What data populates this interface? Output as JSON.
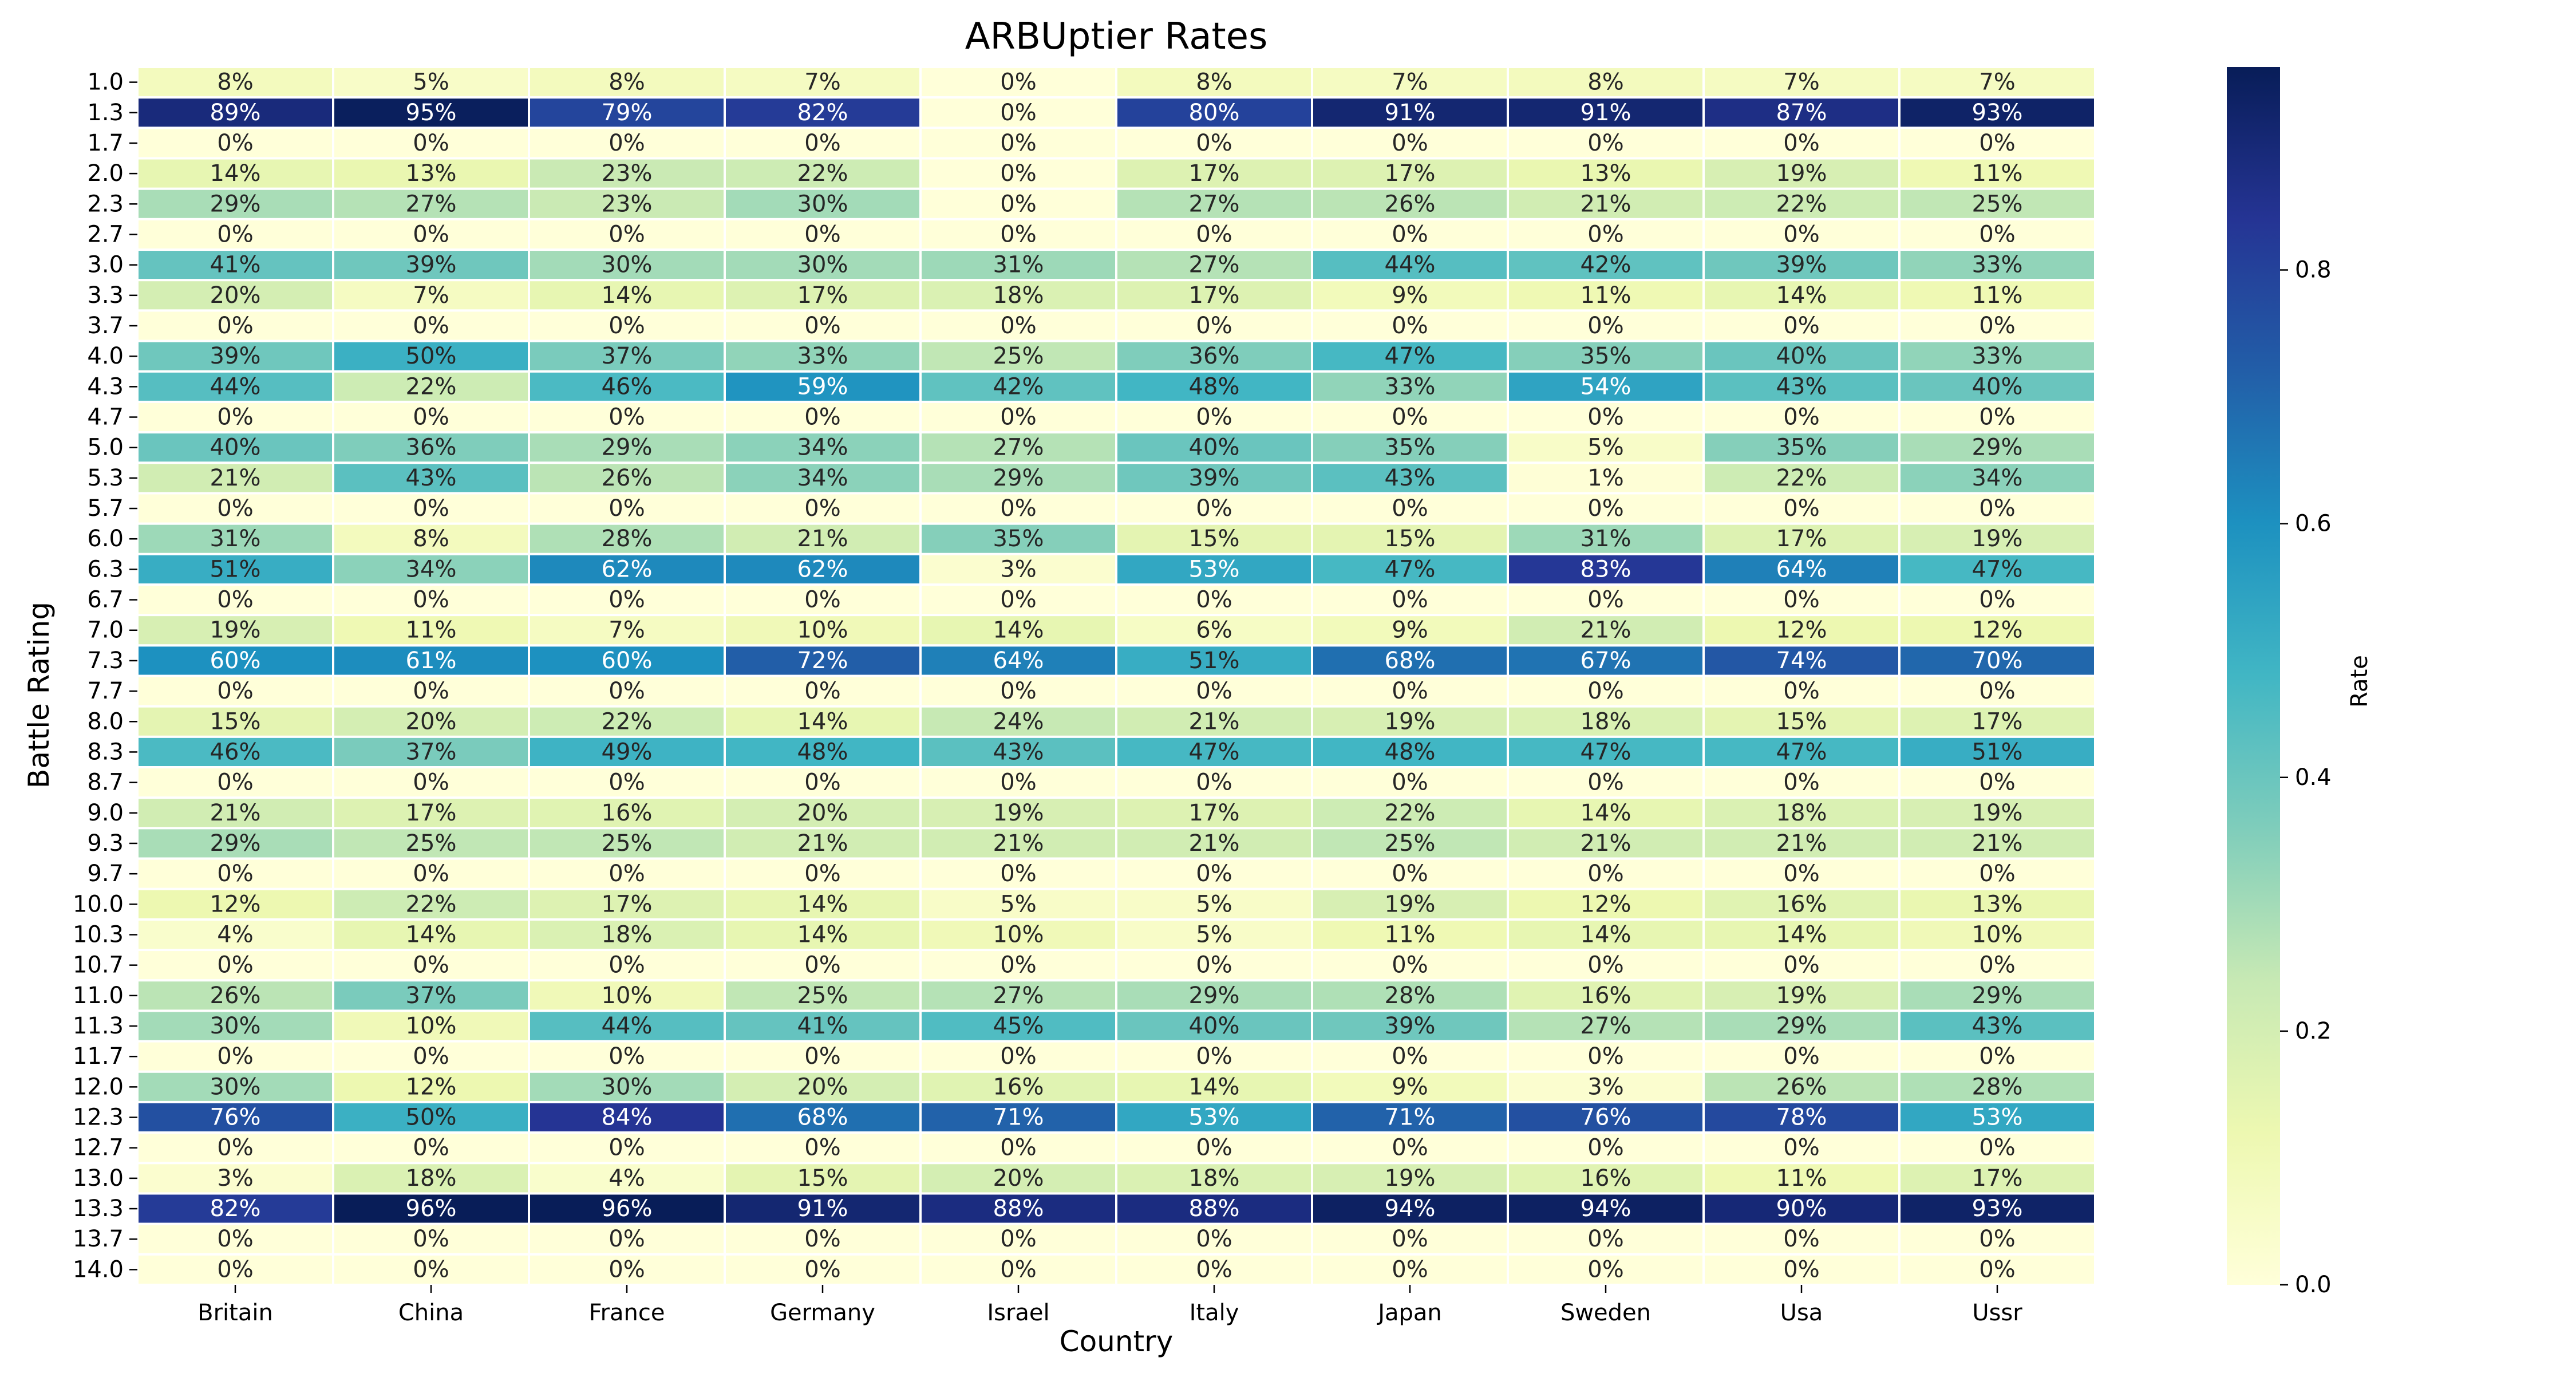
{
  "chart_data": {
    "type": "heatmap",
    "title": "ARBUptier Rates",
    "xlabel": "Country",
    "ylabel": "Battle Rating",
    "colorbar_label": "Rate",
    "colorbar_ticks": [
      "0.0",
      "0.2",
      "0.4",
      "0.6",
      "0.8"
    ],
    "colorbar_tick_values": [
      0.0,
      0.2,
      0.4,
      0.6,
      0.8
    ],
    "value_range": [
      0,
      0.96
    ],
    "colormap": "YlGnBu",
    "colormap_stops": [
      "#ffffd9",
      "#edf8b1",
      "#c7e9b4",
      "#7fcdbb",
      "#41b6c4",
      "#1d91c0",
      "#225ea8",
      "#253494",
      "#081d58"
    ],
    "x_categories": [
      "Britain",
      "China",
      "France",
      "Germany",
      "Israel",
      "Italy",
      "Japan",
      "Sweden",
      "Usa",
      "Ussr"
    ],
    "y_categories": [
      "1.0",
      "1.3",
      "1.7",
      "2.0",
      "2.3",
      "2.7",
      "3.0",
      "3.3",
      "3.7",
      "4.0",
      "4.3",
      "4.7",
      "5.0",
      "5.3",
      "5.7",
      "6.0",
      "6.3",
      "6.7",
      "7.0",
      "7.3",
      "7.7",
      "8.0",
      "8.3",
      "8.7",
      "9.0",
      "9.3",
      "9.7",
      "10.0",
      "10.3",
      "10.7",
      "11.0",
      "11.3",
      "11.7",
      "12.0",
      "12.3",
      "12.7",
      "13.0",
      "13.3",
      "13.7",
      "14.0"
    ],
    "values_percent": [
      [
        8,
        5,
        8,
        7,
        0,
        8,
        7,
        8,
        7,
        7
      ],
      [
        89,
        95,
        79,
        82,
        0,
        80,
        91,
        91,
        87,
        93
      ],
      [
        0,
        0,
        0,
        0,
        0,
        0,
        0,
        0,
        0,
        0
      ],
      [
        14,
        13,
        23,
        22,
        0,
        17,
        17,
        13,
        19,
        11
      ],
      [
        29,
        27,
        23,
        30,
        0,
        27,
        26,
        21,
        22,
        25
      ],
      [
        0,
        0,
        0,
        0,
        0,
        0,
        0,
        0,
        0,
        0
      ],
      [
        41,
        39,
        30,
        30,
        31,
        27,
        44,
        42,
        39,
        33
      ],
      [
        20,
        7,
        14,
        17,
        18,
        17,
        9,
        11,
        14,
        11
      ],
      [
        0,
        0,
        0,
        0,
        0,
        0,
        0,
        0,
        0,
        0
      ],
      [
        39,
        50,
        37,
        33,
        25,
        36,
        47,
        35,
        40,
        33
      ],
      [
        44,
        22,
        46,
        59,
        42,
        48,
        33,
        54,
        43,
        40
      ],
      [
        0,
        0,
        0,
        0,
        0,
        0,
        0,
        0,
        0,
        0
      ],
      [
        40,
        36,
        29,
        34,
        27,
        40,
        35,
        5,
        35,
        29
      ],
      [
        21,
        43,
        26,
        34,
        29,
        39,
        43,
        1,
        22,
        34
      ],
      [
        0,
        0,
        0,
        0,
        0,
        0,
        0,
        0,
        0,
        0
      ],
      [
        31,
        8,
        28,
        21,
        35,
        15,
        15,
        31,
        17,
        19
      ],
      [
        51,
        34,
        62,
        62,
        3,
        53,
        47,
        83,
        64,
        47
      ],
      [
        0,
        0,
        0,
        0,
        0,
        0,
        0,
        0,
        0,
        0
      ],
      [
        19,
        11,
        7,
        10,
        14,
        6,
        9,
        21,
        12,
        12
      ],
      [
        60,
        61,
        60,
        72,
        64,
        51,
        68,
        67,
        74,
        70
      ],
      [
        0,
        0,
        0,
        0,
        0,
        0,
        0,
        0,
        0,
        0
      ],
      [
        15,
        20,
        22,
        14,
        24,
        21,
        19,
        18,
        15,
        17
      ],
      [
        46,
        37,
        49,
        48,
        43,
        47,
        48,
        47,
        47,
        51
      ],
      [
        0,
        0,
        0,
        0,
        0,
        0,
        0,
        0,
        0,
        0
      ],
      [
        21,
        17,
        16,
        20,
        19,
        17,
        22,
        14,
        18,
        19
      ],
      [
        29,
        25,
        25,
        21,
        21,
        21,
        25,
        21,
        21,
        21
      ],
      [
        0,
        0,
        0,
        0,
        0,
        0,
        0,
        0,
        0,
        0
      ],
      [
        12,
        22,
        17,
        14,
        5,
        5,
        19,
        12,
        16,
        13
      ],
      [
        4,
        14,
        18,
        14,
        10,
        5,
        11,
        14,
        14,
        10
      ],
      [
        0,
        0,
        0,
        0,
        0,
        0,
        0,
        0,
        0,
        0
      ],
      [
        26,
        37,
        10,
        25,
        27,
        29,
        28,
        16,
        19,
        29
      ],
      [
        30,
        10,
        44,
        41,
        45,
        40,
        39,
        27,
        29,
        43
      ],
      [
        0,
        0,
        0,
        0,
        0,
        0,
        0,
        0,
        0,
        0
      ],
      [
        30,
        12,
        30,
        20,
        16,
        14,
        9,
        3,
        26,
        28
      ],
      [
        76,
        50,
        84,
        68,
        71,
        53,
        71,
        76,
        78,
        53
      ],
      [
        0,
        0,
        0,
        0,
        0,
        0,
        0,
        0,
        0,
        0
      ],
      [
        3,
        18,
        4,
        15,
        20,
        18,
        19,
        16,
        11,
        17
      ],
      [
        82,
        96,
        96,
        91,
        88,
        88,
        94,
        94,
        90,
        93
      ],
      [
        0,
        0,
        0,
        0,
        0,
        0,
        0,
        0,
        0,
        0
      ],
      [
        0,
        0,
        0,
        0,
        0,
        0,
        0,
        0,
        0,
        0
      ]
    ]
  }
}
